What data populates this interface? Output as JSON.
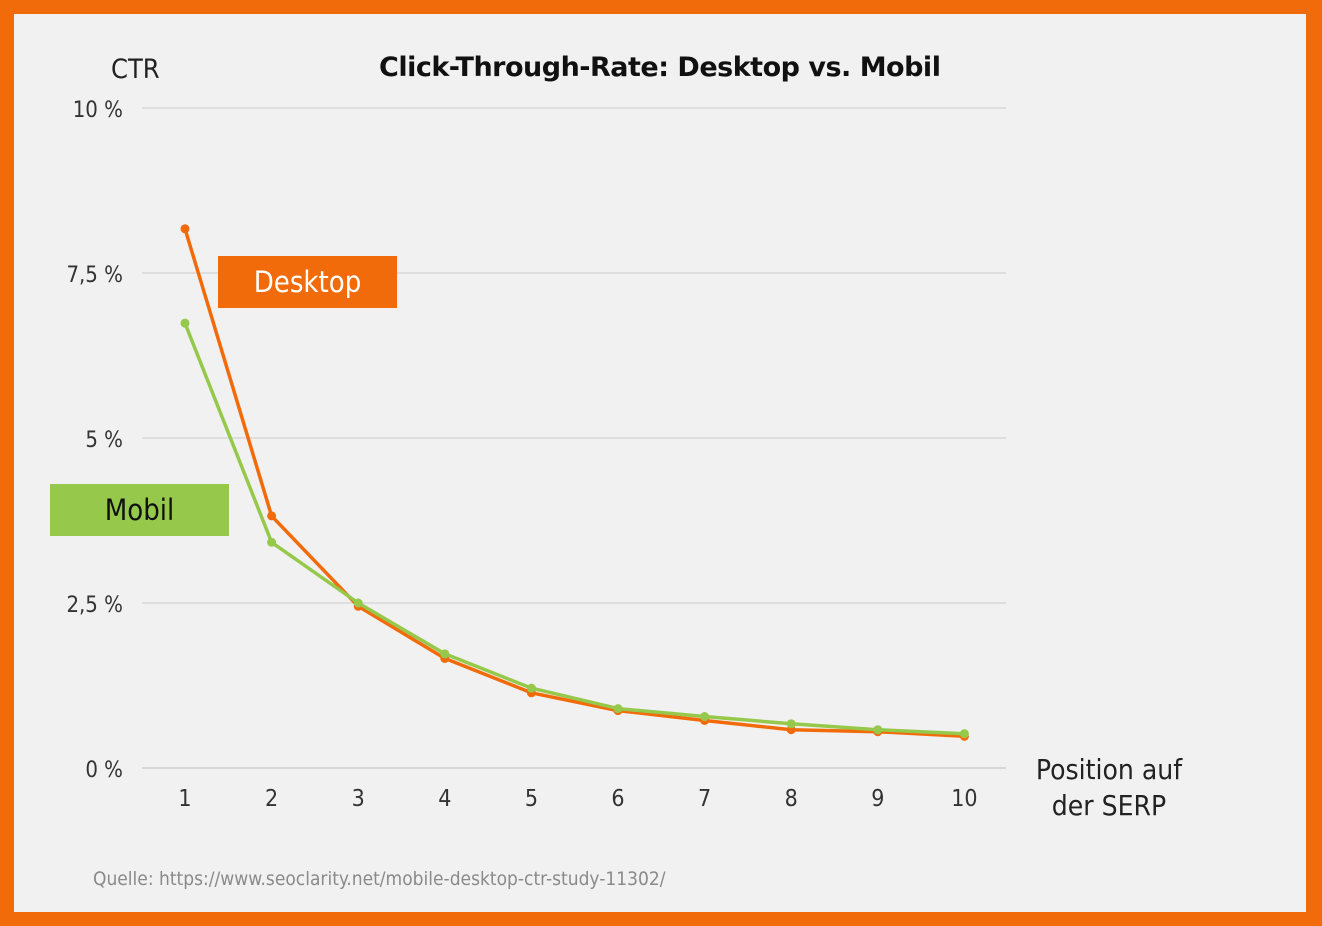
{
  "chart_data": {
    "type": "line",
    "title": "Click-Through-Rate: Desktop vs. Mobil",
    "ylabel": "CTR",
    "xlabel_line1": "Position auf",
    "xlabel_line2": "der SERP",
    "x": [
      1,
      2,
      3,
      4,
      5,
      6,
      7,
      8,
      9,
      10
    ],
    "x_tick_labels": [
      "1",
      "2",
      "3",
      "4",
      "5",
      "6",
      "7",
      "8",
      "9",
      "10"
    ],
    "ylim": [
      0,
      10
    ],
    "y_ticks": [
      0,
      2.5,
      5,
      7.5,
      10
    ],
    "y_tick_labels": [
      "0 %",
      "2,5 %",
      "5 %",
      "7,5 %",
      "10 %"
    ],
    "grid": true,
    "series": [
      {
        "name": "Desktop",
        "color": "#f26b0a",
        "values": [
          8.17,
          3.82,
          2.45,
          1.66,
          1.14,
          0.87,
          0.72,
          0.58,
          0.55,
          0.48
        ]
      },
      {
        "name": "Mobil",
        "color": "#96c94b",
        "values": [
          6.74,
          3.42,
          2.5,
          1.73,
          1.21,
          0.9,
          0.78,
          0.67,
          0.58,
          0.52
        ]
      }
    ],
    "source": "Quelle: https://www.seoclarity.net/mobile-desktop-ctr-study-11302/"
  },
  "colors": {
    "frame": "#f26b0a",
    "background": "#f1f1f1",
    "desktop": "#f26b0a",
    "mobil": "#96c94b",
    "grid": "#cccccc"
  }
}
